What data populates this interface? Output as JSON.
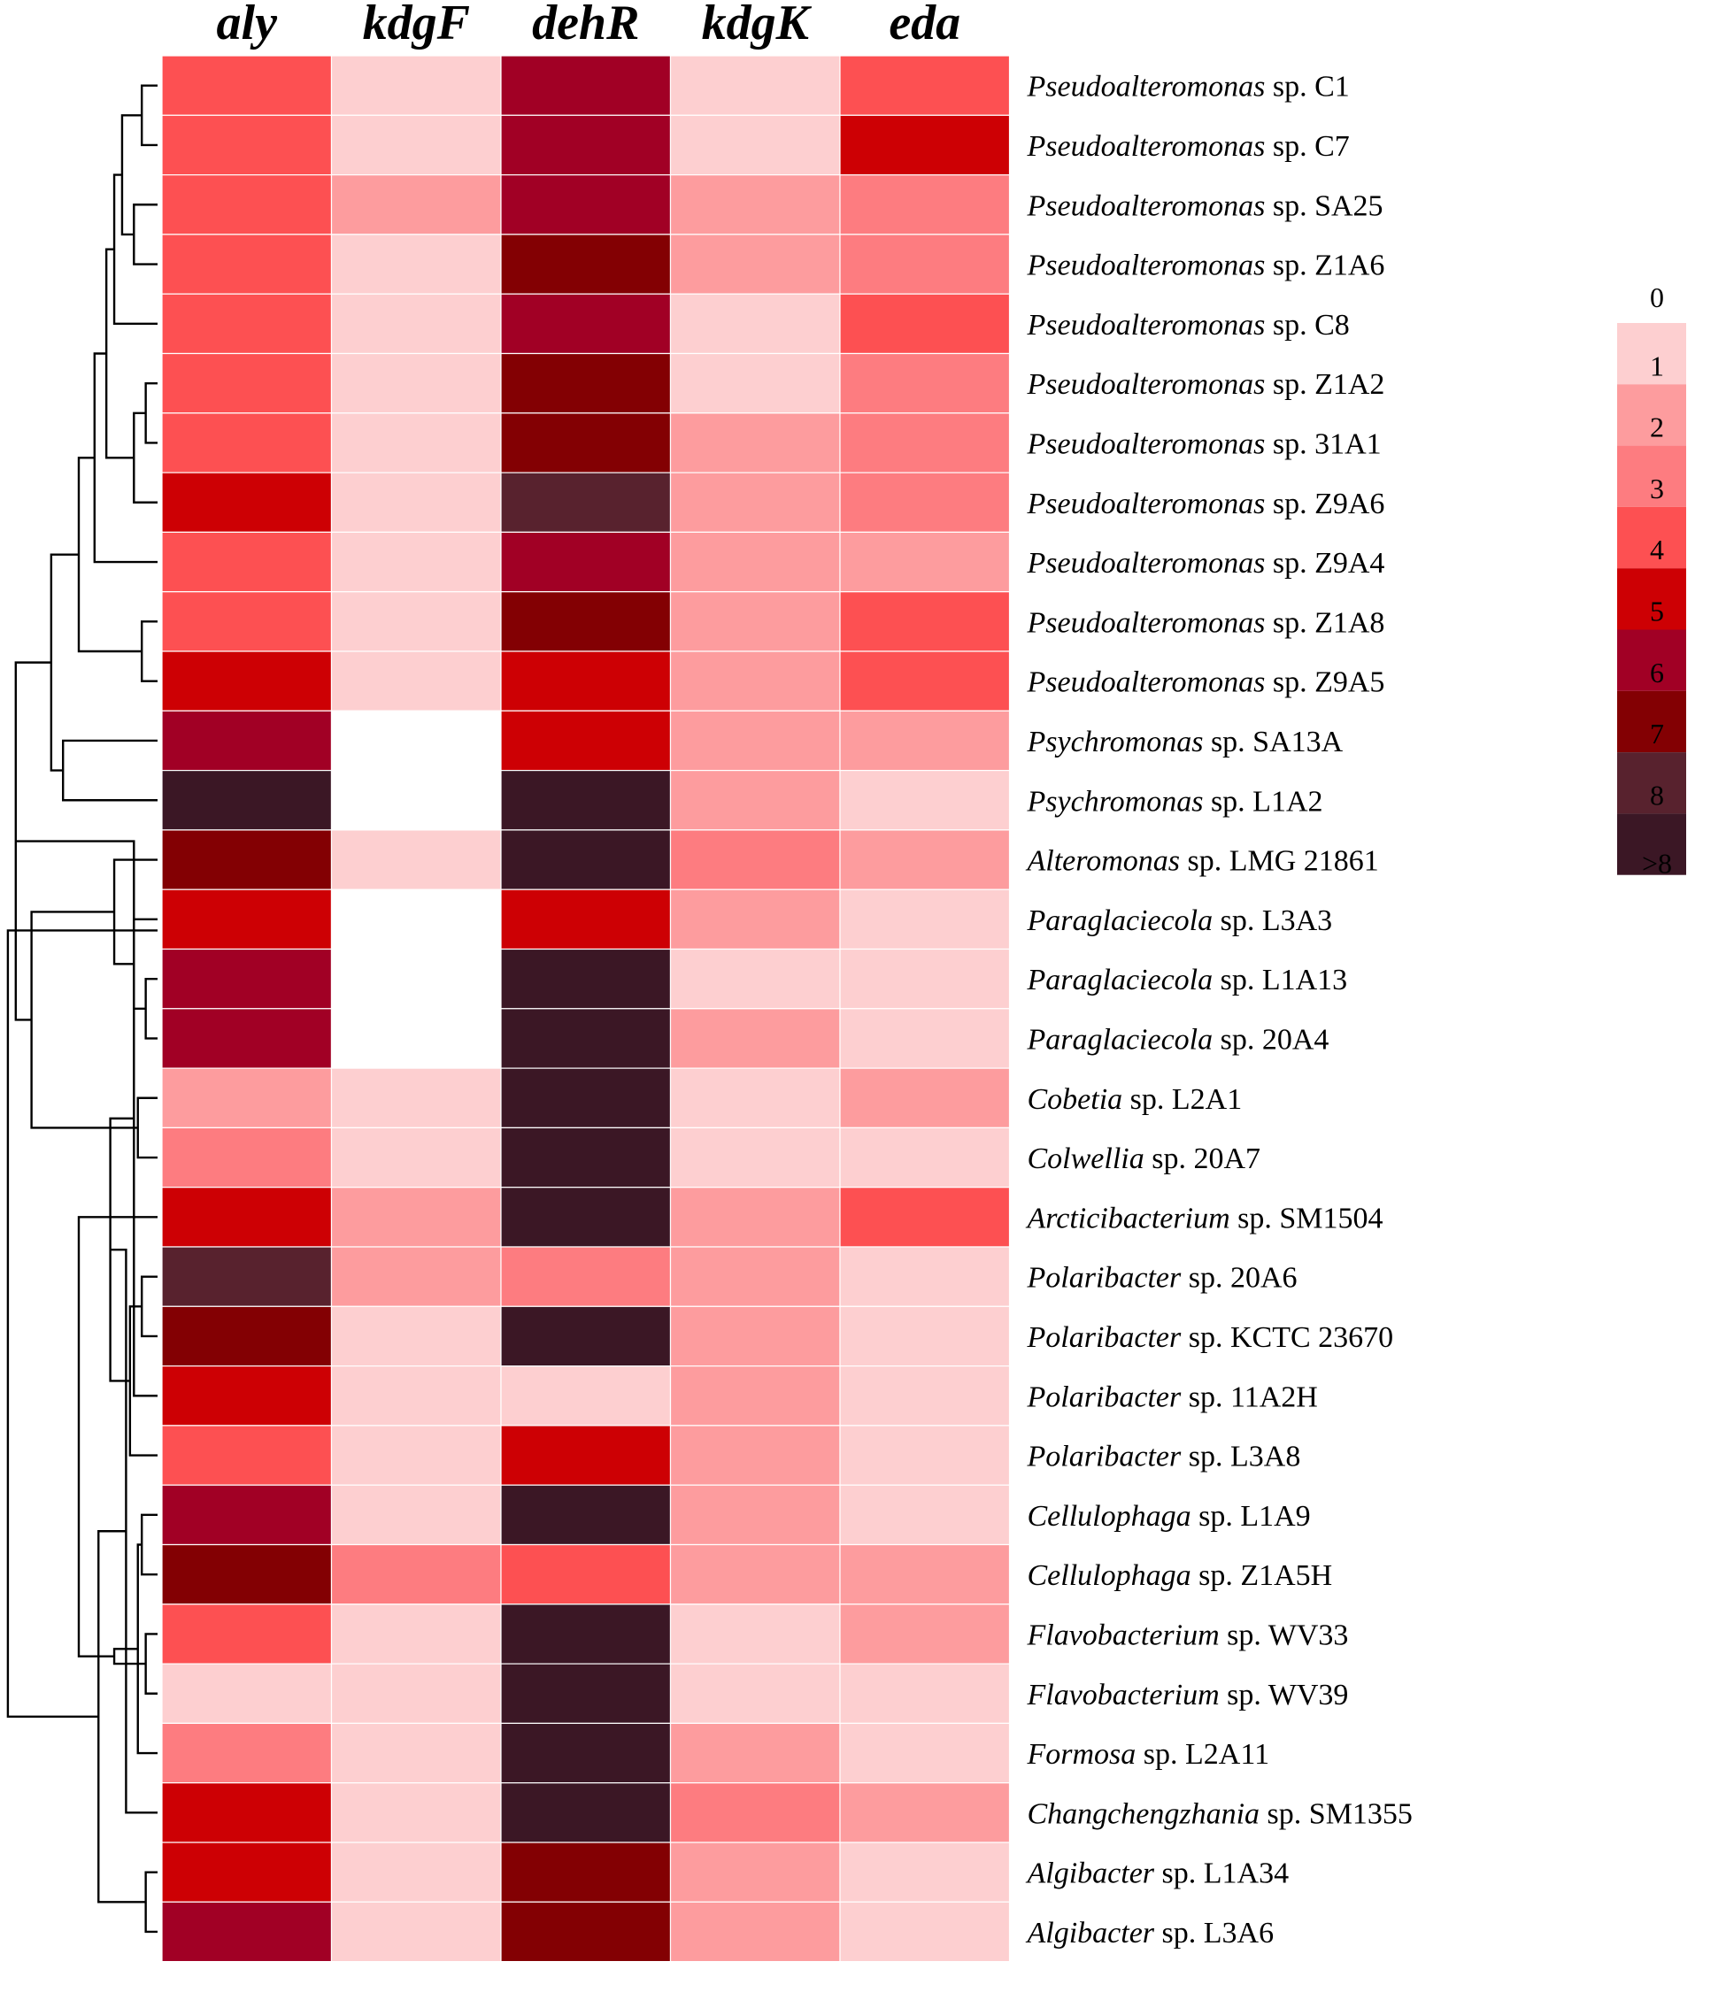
{
  "chart_data": {
    "type": "heatmap",
    "columns": [
      "aly",
      "kdgF",
      "dehR",
      "kdgK",
      "eda"
    ],
    "rows": [
      {
        "genus": "Pseudoalteromonas",
        "rest": "sp. C1",
        "values": [
          4,
          1,
          6,
          1,
          4
        ]
      },
      {
        "genus": "Pseudoalteromonas",
        "rest": "sp. C7",
        "values": [
          4,
          1,
          6,
          1,
          5
        ]
      },
      {
        "genus": "Pseudoalteromonas",
        "rest": "sp. SA25",
        "values": [
          4,
          2,
          6,
          2,
          3
        ]
      },
      {
        "genus": "Pseudoalteromonas",
        "rest": "sp. Z1A6",
        "values": [
          4,
          1,
          7,
          2,
          3
        ]
      },
      {
        "genus": "Pseudoalteromonas",
        "rest": "sp. C8",
        "values": [
          4,
          1,
          6,
          1,
          4
        ]
      },
      {
        "genus": "Pseudoalteromonas",
        "rest": "sp. Z1A2",
        "values": [
          4,
          1,
          7,
          1,
          3
        ]
      },
      {
        "genus": "Pseudoalteromonas",
        "rest": "sp. 31A1",
        "values": [
          4,
          1,
          7,
          2,
          3
        ]
      },
      {
        "genus": "Pseudoalteromonas",
        "rest": "sp. Z9A6",
        "values": [
          5,
          1,
          8,
          2,
          3
        ]
      },
      {
        "genus": "Pseudoalteromonas",
        "rest": "sp. Z9A4",
        "values": [
          4,
          1,
          6,
          2,
          2
        ]
      },
      {
        "genus": "Pseudoalteromonas",
        "rest": "sp. Z1A8",
        "values": [
          4,
          1,
          7,
          2,
          4
        ]
      },
      {
        "genus": "Pseudoalteromonas",
        "rest": "sp. Z9A5",
        "values": [
          5,
          1,
          5,
          2,
          4
        ]
      },
      {
        "genus": "Psychromonas",
        "rest": "sp. SA13A",
        "values": [
          6,
          0,
          5,
          2,
          2
        ]
      },
      {
        "genus": "Psychromonas",
        "rest": "sp. L1A2",
        "values": [
          9,
          0,
          9,
          2,
          1
        ]
      },
      {
        "genus": "Alteromonas",
        "rest": "sp. LMG 21861",
        "values": [
          7,
          1,
          9,
          3,
          2
        ]
      },
      {
        "genus": "Paraglaciecola",
        "rest": "sp. L3A3",
        "values": [
          5,
          0,
          5,
          2,
          1
        ]
      },
      {
        "genus": "Paraglaciecola",
        "rest": "sp. L1A13",
        "values": [
          6,
          0,
          9,
          1,
          1
        ]
      },
      {
        "genus": "Paraglaciecola",
        "rest": "sp. 20A4",
        "values": [
          6,
          0,
          9,
          2,
          1
        ]
      },
      {
        "genus": "Cobetia",
        "rest": "sp. L2A1",
        "values": [
          2,
          1,
          9,
          1,
          2
        ]
      },
      {
        "genus": "Colwellia",
        "rest": "sp. 20A7",
        "values": [
          3,
          1,
          9,
          1,
          1
        ]
      },
      {
        "genus": "Arcticibacterium",
        "rest": "sp. SM1504",
        "values": [
          5,
          2,
          9,
          2,
          4
        ]
      },
      {
        "genus": "Polaribacter",
        "rest": "sp. 20A6",
        "values": [
          8,
          2,
          3,
          2,
          1
        ]
      },
      {
        "genus": "Polaribacter",
        "rest": "sp. KCTC 23670",
        "values": [
          7,
          1,
          9,
          2,
          1
        ]
      },
      {
        "genus": "Polaribacter",
        "rest": "sp. 11A2H",
        "values": [
          5,
          1,
          1,
          2,
          1
        ]
      },
      {
        "genus": "Polaribacter",
        "rest": "sp. L3A8",
        "values": [
          4,
          1,
          5,
          2,
          1
        ]
      },
      {
        "genus": "Cellulophaga",
        "rest": "sp. L1A9",
        "values": [
          6,
          1,
          9,
          2,
          1
        ]
      },
      {
        "genus": "Cellulophaga",
        "rest": "sp. Z1A5H",
        "values": [
          7,
          3,
          4,
          2,
          2
        ]
      },
      {
        "genus": "Flavobacterium",
        "rest": "sp. WV33",
        "values": [
          4,
          1,
          9,
          1,
          2
        ]
      },
      {
        "genus": "Flavobacterium",
        "rest": "sp. WV39",
        "values": [
          1,
          1,
          9,
          1,
          1
        ]
      },
      {
        "genus": "Formosa",
        "rest": "sp. L2A11",
        "values": [
          3,
          1,
          9,
          2,
          1
        ]
      },
      {
        "genus": "Changchengzhania",
        "rest": "sp. SM1355",
        "values": [
          5,
          1,
          9,
          3,
          2
        ]
      },
      {
        "genus": "Algibacter",
        "rest": "sp. L1A34",
        "values": [
          5,
          1,
          7,
          2,
          1
        ]
      },
      {
        "genus": "Algibacter",
        "rest": "sp. L3A6",
        "values": [
          6,
          1,
          7,
          2,
          1
        ]
      }
    ],
    "color_scale": {
      "ticks": [
        "0",
        "1",
        "2",
        "3",
        "4",
        "5",
        "6",
        "7",
        "8",
        ">8"
      ],
      "colors": [
        "#ffffff",
        "#fdcfd0",
        "#fd9c9e",
        "#fd7c80",
        "#fd5052",
        "#cd0004",
        "#a10025",
        "#830003",
        "#58222e",
        "#3b1725"
      ]
    },
    "dendrogram": [
      [
        0,
        1,
        0.04
      ],
      [
        2,
        3,
        0.06
      ],
      [
        32,
        33,
        0.09
      ],
      [
        34,
        4,
        0.11
      ],
      [
        5,
        6,
        0.03
      ],
      [
        36,
        7,
        0.06
      ],
      [
        35,
        37,
        0.13
      ],
      [
        38,
        8,
        0.16
      ],
      [
        9,
        10,
        0.04
      ],
      [
        39,
        40,
        0.2
      ],
      [
        11,
        12,
        0.24
      ],
      [
        41,
        42,
        0.27
      ],
      [
        15,
        16,
        0.03
      ],
      [
        14,
        44,
        0.06
      ],
      [
        13,
        45,
        0.11
      ],
      [
        17,
        18,
        0.05
      ],
      [
        46,
        47,
        0.32
      ],
      [
        43,
        48,
        0.36
      ],
      [
        20,
        21,
        0.04
      ],
      [
        49,
        22,
        0.06
      ],
      [
        50,
        23,
        0.07
      ],
      [
        24,
        25,
        0.04
      ],
      [
        51,
        52,
        0.12
      ],
      [
        26,
        27,
        0.03
      ],
      [
        53,
        28,
        0.05
      ],
      [
        54,
        29,
        0.08
      ],
      [
        30,
        31,
        0.03
      ],
      [
        55,
        56,
        0.11
      ],
      [
        57,
        58,
        0.15
      ],
      [
        19,
        59,
        0.2
      ],
      [
        48.5,
        60,
        0.38
      ]
    ]
  }
}
